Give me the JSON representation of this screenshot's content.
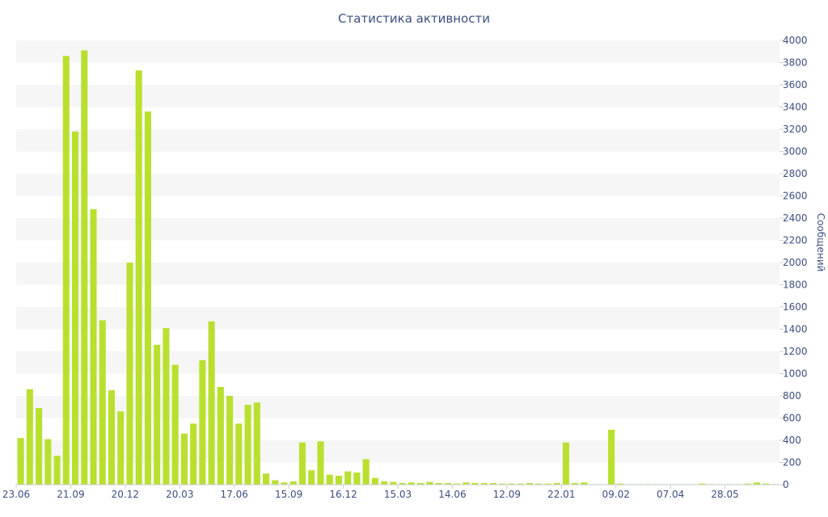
{
  "chart_data": {
    "type": "bar",
    "title": "Статистика активности",
    "ylabel": "Сообщений",
    "xlabel": "",
    "ylim": [
      0,
      4000
    ],
    "y_ticks": [
      0,
      200,
      400,
      600,
      800,
      1000,
      1200,
      1400,
      1600,
      1800,
      2000,
      2200,
      2400,
      2600,
      2800,
      3000,
      3200,
      3400,
      3600,
      3800,
      4000
    ],
    "y_axis_side": "right",
    "grid": "alternating horizontal bands",
    "legend": "none",
    "bar_color": "#b9e02f",
    "x_tick_labels": [
      {
        "label": "23.06",
        "index": 0
      },
      {
        "label": "21.09",
        "index": 6
      },
      {
        "label": "20.12",
        "index": 12
      },
      {
        "label": "20.03",
        "index": 18
      },
      {
        "label": "17.06",
        "index": 24
      },
      {
        "label": "15.09",
        "index": 30
      },
      {
        "label": "16.12",
        "index": 36
      },
      {
        "label": "15.03",
        "index": 42
      },
      {
        "label": "14.06",
        "index": 48
      },
      {
        "label": "12.09",
        "index": 54
      },
      {
        "label": "22.01",
        "index": 60
      },
      {
        "label": "09.02",
        "index": 66
      },
      {
        "label": "07.04",
        "index": 72
      },
      {
        "label": "28.05",
        "index": 78
      }
    ],
    "values": [
      420,
      860,
      690,
      410,
      260,
      3860,
      3180,
      3910,
      2480,
      1480,
      850,
      660,
      2000,
      3730,
      3360,
      1260,
      1410,
      1080,
      460,
      550,
      1120,
      1470,
      880,
      800,
      550,
      720,
      740,
      100,
      40,
      20,
      30,
      380,
      130,
      390,
      90,
      80,
      120,
      110,
      230,
      60,
      30,
      25,
      15,
      20,
      15,
      25,
      15,
      15,
      10,
      20,
      15,
      15,
      15,
      10,
      10,
      10,
      15,
      10,
      10,
      15,
      380,
      15,
      20,
      5,
      5,
      495,
      10,
      5,
      5,
      5,
      5,
      5,
      5,
      5,
      5,
      10,
      5,
      5,
      5,
      5,
      10,
      20,
      10,
      5
    ]
  }
}
